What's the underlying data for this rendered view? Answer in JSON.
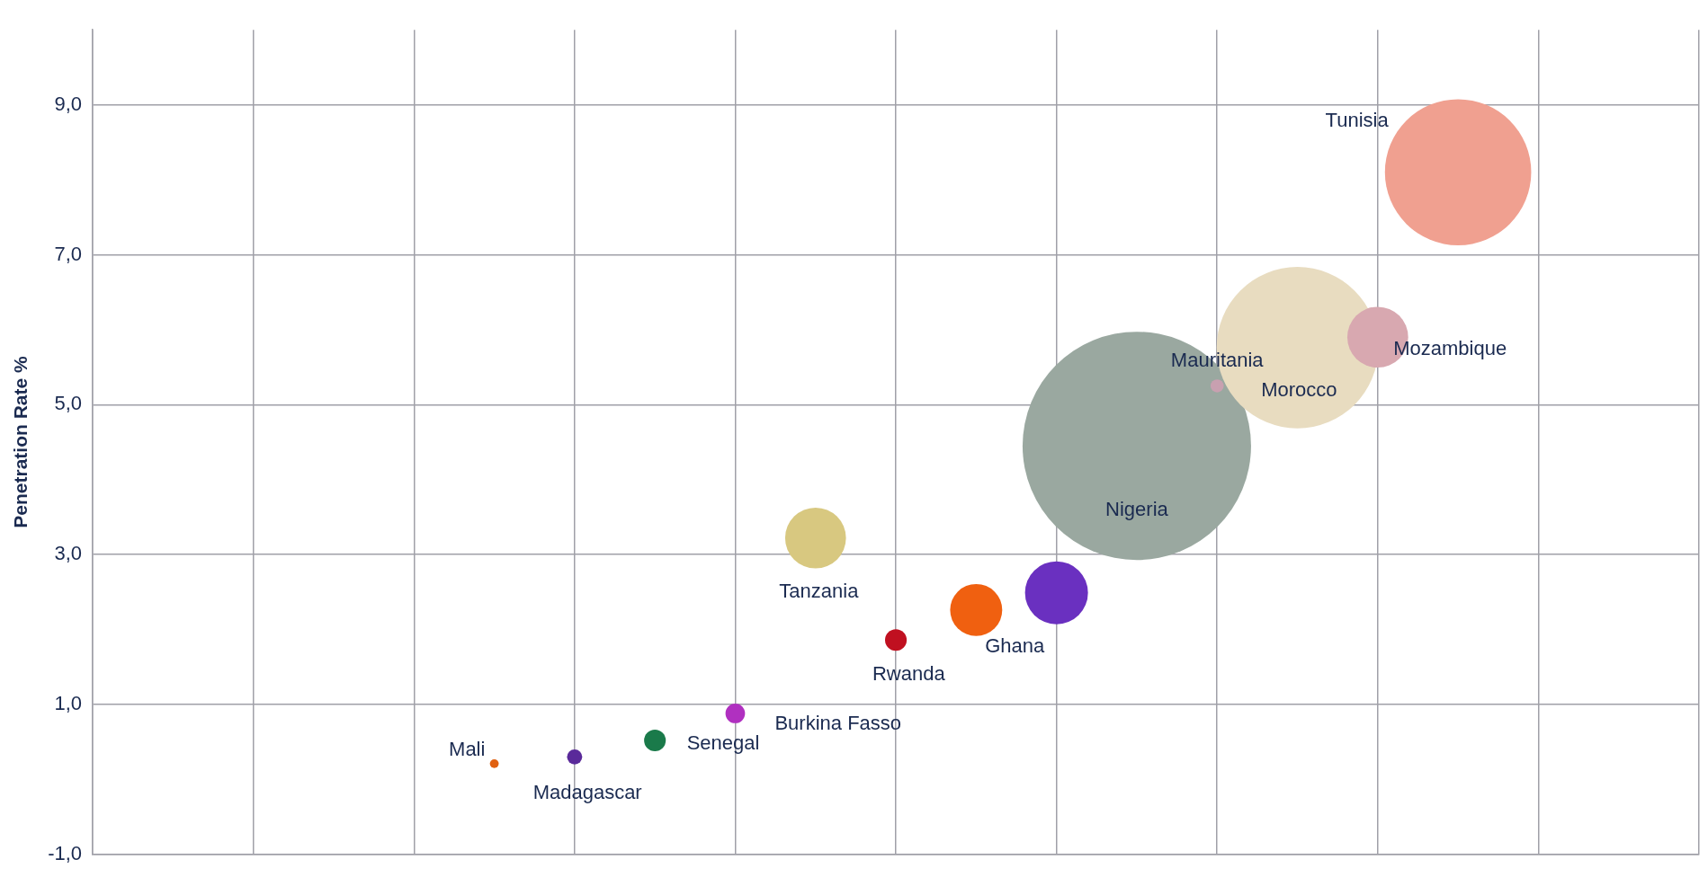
{
  "chart_data": {
    "type": "bubble",
    "ylabel": "Penetration Rate %",
    "categories": [
      null,
      null,
      null,
      null,
      null,
      null,
      null,
      null,
      null,
      null,
      null,
      null,
      null,
      null,
      null,
      null,
      null,
      null,
      null,
      null,
      null
    ],
    "series": [
      {
        "name": "Mali",
        "color": "#e06010",
        "values": [
          null,
          null,
          null,
          null,
          null,
          0.21,
          null,
          null,
          null,
          null,
          null,
          null,
          null,
          null,
          null,
          null,
          null,
          null,
          null,
          null,
          null
        ],
        "sizes": [
          null,
          null,
          null,
          null,
          null,
          0.0015,
          null,
          null,
          null,
          null,
          null,
          null,
          null,
          null,
          null,
          null,
          null,
          null,
          null,
          null,
          null
        ]
      },
      {
        "name": "Madagascar",
        "color": "#5a2a9a",
        "values": [
          null,
          null,
          null,
          null,
          null,
          null,
          0.3,
          null,
          null,
          null,
          null,
          null,
          null,
          null,
          null,
          null,
          null,
          null,
          null,
          null,
          null
        ],
        "sizes": [
          null,
          null,
          null,
          null,
          null,
          null,
          0.0044,
          null,
          null,
          null,
          null,
          null,
          null,
          null,
          null,
          null,
          null,
          null,
          null,
          null,
          null
        ]
      },
      {
        "name": "Senegal",
        "color": "#1a7a4a",
        "values": [
          null,
          null,
          null,
          null,
          null,
          null,
          null,
          0.52,
          null,
          null,
          null,
          null,
          null,
          null,
          null,
          null,
          null,
          null,
          null,
          null,
          null
        ],
        "sizes": [
          null,
          null,
          null,
          null,
          null,
          null,
          null,
          0.009,
          null,
          null,
          null,
          null,
          null,
          null,
          null,
          null,
          null,
          null,
          null,
          null,
          null
        ]
      },
      {
        "name": "Burkina Fasso",
        "color": "#b030c0",
        "values": [
          null,
          null,
          null,
          null,
          null,
          null,
          null,
          null,
          0.88,
          null,
          null,
          null,
          null,
          null,
          null,
          null,
          null,
          null,
          null,
          null,
          null
        ],
        "sizes": [
          null,
          null,
          null,
          null,
          null,
          null,
          null,
          null,
          0.0073,
          null,
          null,
          null,
          null,
          null,
          null,
          null,
          null,
          null,
          null,
          null,
          null
        ]
      },
      {
        "name": "Tanzania",
        "color": "#d8c880",
        "values": [
          null,
          null,
          null,
          null,
          null,
          null,
          null,
          null,
          null,
          3.22,
          null,
          null,
          null,
          null,
          null,
          null,
          null,
          null,
          null,
          null,
          null
        ],
        "sizes": [
          null,
          null,
          null,
          null,
          null,
          null,
          null,
          null,
          null,
          0.071,
          null,
          null,
          null,
          null,
          null,
          null,
          null,
          null,
          null,
          null,
          null
        ]
      },
      {
        "name": "Rwanda",
        "color": "#c01020",
        "values": [
          null,
          null,
          null,
          null,
          null,
          null,
          null,
          null,
          null,
          null,
          1.86,
          null,
          null,
          null,
          null,
          null,
          null,
          null,
          null,
          null,
          null
        ],
        "sizes": [
          null,
          null,
          null,
          null,
          null,
          null,
          null,
          null,
          null,
          null,
          0.009,
          null,
          null,
          null,
          null,
          null,
          null,
          null,
          null,
          null,
          null
        ]
      },
      {
        "name": "Ghana",
        "color": "#f06010",
        "values": [
          null,
          null,
          null,
          null,
          null,
          null,
          null,
          null,
          null,
          null,
          null,
          2.26,
          null,
          null,
          null,
          null,
          null,
          null,
          null,
          null,
          null
        ],
        "sizes": [
          null,
          null,
          null,
          null,
          null,
          null,
          null,
          null,
          null,
          null,
          null,
          0.052,
          null,
          null,
          null,
          null,
          null,
          null,
          null,
          null,
          null
        ]
      },
      {
        "color": "#6a30c0",
        "values": [
          null,
          null,
          null,
          null,
          null,
          null,
          null,
          null,
          null,
          null,
          null,
          null,
          2.49,
          null,
          null,
          null,
          null,
          null,
          null,
          null,
          null
        ],
        "sizes": [
          null,
          null,
          null,
          null,
          null,
          null,
          null,
          null,
          null,
          null,
          null,
          null,
          0.076,
          null,
          null,
          null,
          null,
          null,
          null,
          null,
          null
        ]
      },
      {
        "name": "Nigeria",
        "color": "#9aa8a0",
        "values": [
          null,
          null,
          null,
          null,
          null,
          null,
          null,
          null,
          null,
          null,
          null,
          null,
          null,
          4.45,
          null,
          null,
          null,
          null,
          null,
          null,
          null
        ],
        "sizes": [
          null,
          null,
          null,
          null,
          null,
          null,
          null,
          null,
          null,
          null,
          null,
          null,
          null,
          1,
          null,
          null,
          null,
          null,
          null,
          null,
          null
        ]
      },
      {
        "name": "Mauritania",
        "color": "#c8a0b0",
        "values": [
          null,
          null,
          null,
          null,
          null,
          null,
          null,
          null,
          null,
          null,
          null,
          null,
          null,
          null,
          5.25,
          null,
          null,
          null,
          null,
          null,
          null
        ],
        "sizes": [
          null,
          null,
          null,
          null,
          null,
          null,
          null,
          null,
          null,
          null,
          null,
          null,
          null,
          null,
          0.0033,
          null,
          null,
          null,
          null,
          null,
          null
        ]
      },
      {
        "name": "Morocco",
        "color": "#e8dcc0",
        "values": [
          null,
          null,
          null,
          null,
          null,
          null,
          null,
          null,
          null,
          null,
          null,
          null,
          null,
          null,
          null,
          5.76,
          null,
          null,
          null,
          null,
          null
        ],
        "sizes": [
          null,
          null,
          null,
          null,
          null,
          null,
          null,
          null,
          null,
          null,
          null,
          null,
          null,
          null,
          null,
          0.5,
          null,
          null,
          null,
          null,
          null
        ]
      },
      {
        "name": "Mozambique",
        "color": "#d8a8b0",
        "values": [
          null,
          null,
          null,
          null,
          null,
          null,
          null,
          null,
          null,
          null,
          null,
          null,
          null,
          null,
          null,
          null,
          5.9,
          null,
          null,
          null,
          null
        ],
        "sizes": [
          null,
          null,
          null,
          null,
          null,
          null,
          null,
          null,
          null,
          null,
          null,
          null,
          null,
          null,
          null,
          null,
          0.071,
          null,
          null,
          null,
          null
        ]
      },
      {
        "name": "Tunisia",
        "color": "#f0a090",
        "values": [
          null,
          null,
          null,
          null,
          null,
          null,
          null,
          null,
          null,
          null,
          null,
          null,
          null,
          null,
          null,
          null,
          null,
          8.1,
          null,
          null,
          null
        ],
        "sizes": [
          null,
          null,
          null,
          null,
          null,
          null,
          null,
          null,
          null,
          null,
          null,
          null,
          null,
          null,
          null,
          null,
          null,
          0.41,
          null,
          null,
          null
        ]
      }
    ],
    "ylim": [
      -1,
      10
    ],
    "yticks": [
      {
        "value": -1,
        "label": "-1,0"
      },
      {
        "value": 1,
        "label": "1,0"
      },
      {
        "value": 3,
        "label": "3,0"
      },
      {
        "value": 5,
        "label": "5,0"
      },
      {
        "value": 7,
        "label": "7,0"
      },
      {
        "value": 9,
        "label": "9,0"
      }
    ],
    "tick_labels": "y",
    "grid": true,
    "legend": false
  }
}
